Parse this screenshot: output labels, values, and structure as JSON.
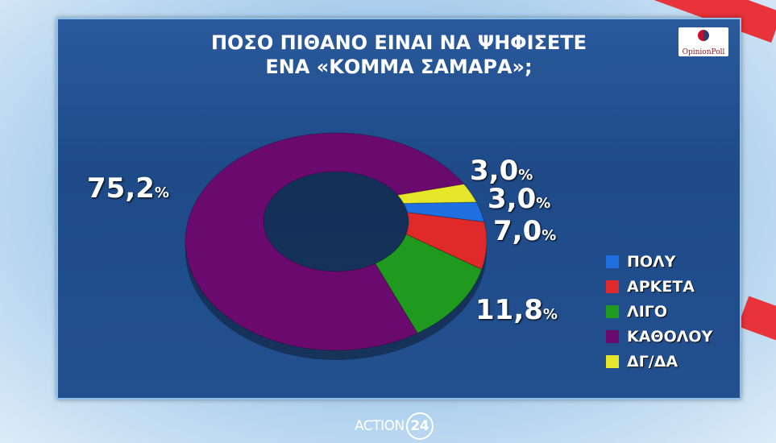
{
  "title_lines": [
    "ΠΟΣΟ ΠΙΘΑΝΟ ΕΙΝΑΙ ΝΑ ΨΗΦΙΣΕΤΕ",
    "ΕΝΑ «ΚΟΜΜΑ ΣΑΜΑΡΑ»;"
  ],
  "logo": "OpinionPoll",
  "footer": {
    "brand": "ACTION",
    "number": "24"
  },
  "chart_data": {
    "type": "pie",
    "donut": true,
    "title": "ΠΟΣΟ ΠΙΘΑΝΟ ΕΙΝΑΙ ΝΑ ΨΗΦΙΣΕΤΕ ΕΝΑ «ΚΟΜΜΑ ΣΑΜΑΡΑ»;",
    "legend_position": "right",
    "slices": [
      {
        "name": "ΠΟΛΥ",
        "value": 3.0,
        "label": "3,0",
        "color": "#1f6fe0"
      },
      {
        "name": "ΑΡΚΕΤΑ",
        "value": 7.0,
        "label": "7,0",
        "color": "#e02a2a"
      },
      {
        "name": "ΛΙΓΟ",
        "value": 11.8,
        "label": "11,8",
        "color": "#1f9a1f"
      },
      {
        "name": "ΚΑΘΟΛΟΥ",
        "value": 75.2,
        "label": "75,2",
        "color": "#6b0a6e"
      },
      {
        "name": "ΔΓ/ΔΑ",
        "value": 3.0,
        "label": "3,0",
        "color": "#e6e62a"
      }
    ],
    "unit": "%"
  }
}
